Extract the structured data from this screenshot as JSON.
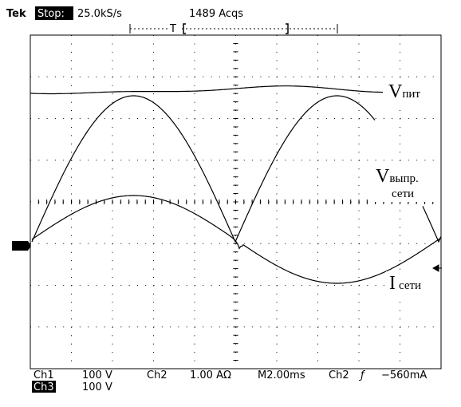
{
  "header": {
    "brand": "Tek",
    "state": "Stop:",
    "sample_rate": "25.0kS/s",
    "acquisitions": "1489 Acqs",
    "trigger_position": "T"
  },
  "trace_labels": [
    {
      "symbol": "V",
      "subscript": "пит"
    },
    {
      "symbol": "V",
      "subscript": "выпр.",
      "second_line": "сети"
    },
    {
      "symbol": "I",
      "subscript": "сети"
    }
  ],
  "footer": {
    "row1": [
      "Ch1",
      "100 V",
      "Ch2",
      "1.00 AΩ",
      "M2.00ms",
      "Ch2",
      "ƒ",
      "−560mA"
    ],
    "row2": [
      "Ch3",
      "100 V"
    ]
  }
}
